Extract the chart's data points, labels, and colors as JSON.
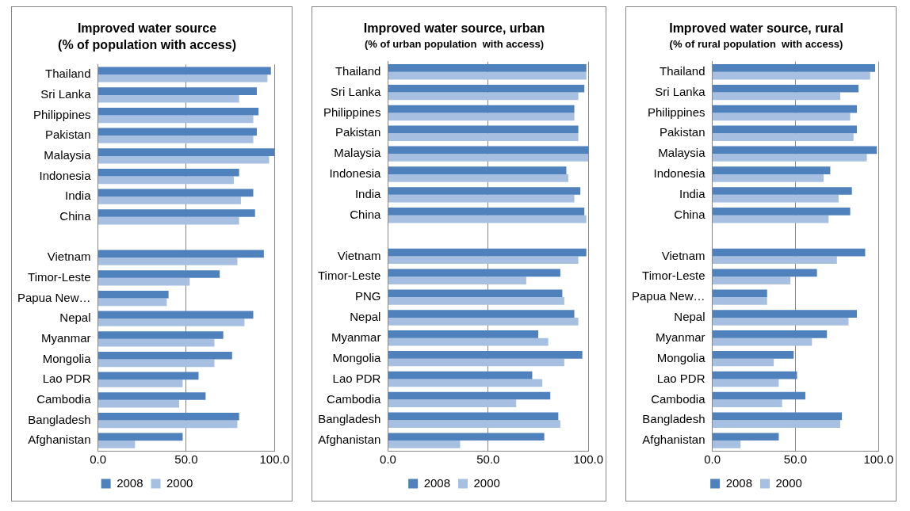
{
  "chart_data": [
    {
      "type": "bar",
      "orientation": "horizontal",
      "title": "Improved water source",
      "subtitle": "(% of population with access)",
      "categories": [
        "Thailand",
        "Sri Lanka",
        "Philippines",
        "Pakistan",
        "Malaysia",
        "Indonesia",
        "India",
        "China",
        null,
        "Vietnam",
        "Timor-Leste",
        "Papua New…",
        "Nepal",
        "Myanmar",
        "Mongolia",
        "Lao PDR",
        "Cambodia",
        "Bangladesh",
        "Afghanistan"
      ],
      "series": [
        {
          "name": "2008",
          "color": "#4f81bd",
          "values": [
            98,
            90,
            91,
            90,
            100,
            80,
            88,
            89,
            null,
            94,
            69,
            40,
            88,
            71,
            76,
            57,
            61,
            80,
            48
          ]
        },
        {
          "name": "2000",
          "color": "#a7c0e2",
          "values": [
            96,
            80,
            88,
            88,
            97,
            77,
            81,
            80,
            null,
            79,
            52,
            39,
            83,
            66,
            66,
            48,
            46,
            79,
            21
          ]
        }
      ],
      "xlim": [
        0,
        100
      ],
      "xticks": [
        {
          "value": 0,
          "label": "0.0"
        },
        {
          "value": 50,
          "label": "50.0"
        },
        {
          "value": 100,
          "label": "100.0"
        }
      ],
      "grid": "x",
      "legend": "bottom"
    },
    {
      "type": "bar",
      "orientation": "horizontal",
      "title": "Improved water source, urban",
      "subtitle": "(% of urban population  with access)",
      "categories": [
        "Thailand",
        "Sri Lanka",
        "Philippines",
        "Pakistan",
        "Malaysia",
        "Indonesia",
        "India",
        "China",
        null,
        "Vietnam",
        "Timor-Leste",
        "PNG",
        "Nepal",
        "Myanmar",
        "Mongolia",
        "Lao PDR",
        "Cambodia",
        "Bangladesh",
        "Afghanistan"
      ],
      "series": [
        {
          "name": "2008",
          "color": "#4f81bd",
          "values": [
            99,
            98,
            93,
            95,
            100,
            89,
            96,
            98,
            null,
            99,
            86,
            87,
            93,
            75,
            97,
            72,
            81,
            85,
            78
          ]
        },
        {
          "name": "2000",
          "color": "#a7c0e2",
          "values": [
            99,
            95,
            93,
            95,
            100,
            90,
            93,
            99,
            null,
            95,
            69,
            88,
            95,
            80,
            88,
            77,
            64,
            86,
            36
          ]
        }
      ],
      "xlim": [
        0,
        100
      ],
      "xticks": [
        {
          "value": 0,
          "label": "0.0"
        },
        {
          "value": 50,
          "label": "50.0"
        },
        {
          "value": 100,
          "label": "100.0"
        }
      ],
      "grid": "x",
      "legend": "bottom"
    },
    {
      "type": "bar",
      "orientation": "horizontal",
      "title": "Improved water source, rural",
      "subtitle": "(% of rural population  with access)",
      "categories": [
        "Thailand",
        "Sri Lanka",
        "Philippines",
        "Pakistan",
        "Malaysia",
        "Indonesia",
        "India",
        "China",
        null,
        "Vietnam",
        "Timor-Leste",
        "Papua New…",
        "Nepal",
        "Myanmar",
        "Mongolia",
        "Lao PDR",
        "Cambodia",
        "Bangladesh",
        "Afghanistan"
      ],
      "series": [
        {
          "name": "2008",
          "color": "#4f81bd",
          "values": [
            98,
            88,
            87,
            87,
            99,
            71,
            84,
            83,
            null,
            92,
            63,
            33,
            87,
            69,
            49,
            51,
            56,
            78,
            40
          ]
        },
        {
          "name": "2000",
          "color": "#a7c0e2",
          "values": [
            95,
            77,
            83,
            85,
            93,
            67,
            76,
            70,
            null,
            75,
            47,
            33,
            82,
            60,
            37,
            40,
            42,
            77,
            17
          ]
        }
      ],
      "xlim": [
        0,
        100
      ],
      "xticks": [
        {
          "value": 0,
          "label": "0.0"
        },
        {
          "value": 50,
          "label": "50.0"
        },
        {
          "value": 100,
          "label": "100.0"
        }
      ],
      "grid": "x",
      "legend": "bottom"
    }
  ]
}
